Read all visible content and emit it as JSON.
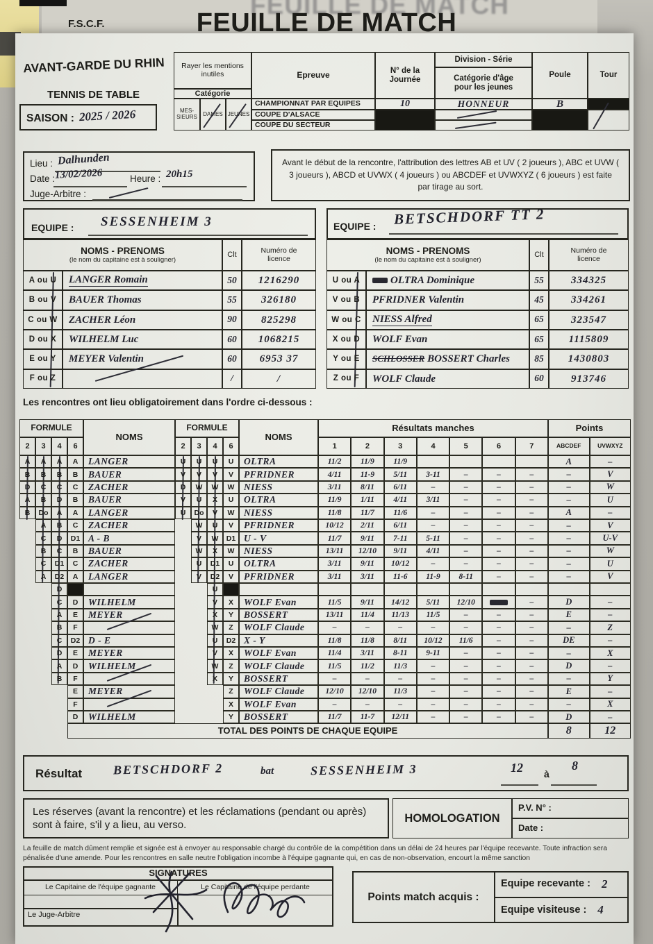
{
  "photo": {
    "ghost_title": "FEUILLE DE MATCH"
  },
  "header": {
    "org": "F.S.C.F.",
    "title": "FEUILLE DE MATCH"
  },
  "club": {
    "name": "AVANT-GARDE DU RHIN",
    "sport": "TENNIS DE TABLE",
    "season_label": "SAISON :",
    "season_value": "2025 / 2026"
  },
  "top_table": {
    "rayer": "Rayer les mentions inutiles",
    "categorie": "Catégorie",
    "cat_options": [
      "MES-SIEURS",
      "DAMES",
      "JEUNES"
    ],
    "epreuve_label": "Epreuve",
    "journee_label": "N° de la Journée",
    "division_label": "Division - Série",
    "division_sub": "Catégorie d'âge pour les jeunes",
    "poule_label": "Poule",
    "tour_label": "Tour",
    "epreuves": [
      "CHAMPIONNAT PAR EQUIPES",
      "COUPE D'ALSACE",
      "COUPE DU SECTEUR"
    ],
    "journee_value": "10",
    "division_value": "HONNEUR",
    "poule_value": "B"
  },
  "info": {
    "lieu_label": "Lieu :",
    "lieu_value": "Dalhunden",
    "date_label": "Date :",
    "date_value": "13/02/2026",
    "heure_label": "Heure :",
    "heure_value": "20h15",
    "juge_label": "Juge-Arbitre :"
  },
  "notice": "Avant le début de la rencontre, l'attribution des lettres AB et UV ( 2 joueurs ), ABC et UVW ( 3 joueurs ), ABCD et UVWX ( 4 joueurs ) ou ABCDEF et UVWXYZ ( 6 joueurs ) est faite par tirage au sort.",
  "teams": {
    "equipe_label": "EQUIPE :",
    "header_name": "NOMS - PRENOMS",
    "header_sub": "(le nom du capitaine est à souligner)",
    "header_clt": "Clt",
    "header_lic": "Numéro de licence",
    "left": {
      "name": "SESSENHEIM 3",
      "rows": [
        {
          "letters": "A ou U",
          "name": "LANGER Romain",
          "clt": "50",
          "lic": "1216290",
          "u": true
        },
        {
          "letters": "B ou V",
          "name": "BAUER Thomas",
          "clt": "55",
          "lic": "326180"
        },
        {
          "letters": "C ou W",
          "name": "ZACHER Léon",
          "clt": "90",
          "lic": "825298"
        },
        {
          "letters": "D ou X",
          "name": "WILHELM Luc",
          "clt": "60",
          "lic": "1068215"
        },
        {
          "letters": "E ou Y",
          "name": "MEYER Valentin",
          "clt": "60",
          "lic": "6953 37"
        },
        {
          "letters": "F ou Z",
          "name": "",
          "clt": "/",
          "lic": "/",
          "slash": true
        }
      ]
    },
    "right": {
      "name": "BETSCHDORF TT 2",
      "rows": [
        {
          "letters": "U ou A",
          "name": "OLTRA Dominique",
          "clt": "55",
          "lic": "334325",
          "scr": true
        },
        {
          "letters": "V ou B",
          "name": "PFRIDNER Valentin",
          "clt": "45",
          "lic": "334261"
        },
        {
          "letters": "W ou C",
          "name": "NIESS Alfred",
          "clt": "65",
          "lic": "323547",
          "u": true
        },
        {
          "letters": "X ou D",
          "name": "WOLF Evan",
          "clt": "65",
          "lic": "1115809"
        },
        {
          "letters": "Y ou E",
          "name": "BOSSERT Charles",
          "clt": "85",
          "lic": "1430803",
          "strike_pre": "SCHLOSSER"
        },
        {
          "letters": "Z ou F",
          "name": "WOLF Claude",
          "clt": "60",
          "lic": "913746"
        }
      ]
    }
  },
  "order_note": "Les rencontres ont lieu obligatoirement dans l'ordre ci-dessous :",
  "grid": {
    "formule_label": "FORMULE",
    "noms_label": "NOMS",
    "resultats_label": "Résultats manches",
    "points_label": "Points",
    "formule_cols": [
      "2",
      "3",
      "4",
      "6"
    ],
    "manche_cols": [
      "1",
      "2",
      "3",
      "4",
      "5",
      "6",
      "7"
    ],
    "points_cols": [
      "ABCDEF",
      "UVWXYZ"
    ],
    "rows": [
      {
        "fl": [
          "A",
          "A",
          "A",
          "A"
        ],
        "nl": "LANGER",
        "fr": [
          "U",
          "U",
          "U",
          "U"
        ],
        "nr": "OLTRA",
        "m": [
          "11/2",
          "11/9",
          "11/9",
          "",
          "",
          "",
          ""
        ],
        "pl": "A",
        "pr": "–"
      },
      {
        "fl": [
          "B",
          "B",
          "B",
          "B"
        ],
        "nl": "BAUER",
        "fr": [
          "V",
          "V",
          "V",
          "V"
        ],
        "nr": "PFRIDNER",
        "m": [
          "4/11",
          "11-9",
          "5/11",
          "3-11",
          "–",
          "–",
          "–"
        ],
        "pl": "–",
        "pr": "V"
      },
      {
        "fl": [
          "D",
          "C",
          "C",
          "C"
        ],
        "nl": "ZACHER",
        "fr": [
          "D",
          "W",
          "W",
          "W"
        ],
        "nr": "NIESS",
        "m": [
          "3/11",
          "8/11",
          "6/11",
          "–",
          "–",
          "–",
          "–"
        ],
        "pl": "–",
        "pr": "W"
      },
      {
        "fl": [
          "A",
          "B",
          "D",
          "B"
        ],
        "nl": "BAUER",
        "fr": [
          "V",
          "U",
          "X",
          "U"
        ],
        "nr": "OLTRA",
        "m": [
          "11/9",
          "1/11",
          "4/11",
          "3/11",
          "–",
          "–",
          "–"
        ],
        "pl": "–",
        "pr": "U"
      },
      {
        "fl": [
          "B",
          "Do",
          "A",
          "A"
        ],
        "nl": "LANGER",
        "fr": [
          "U",
          "Do",
          "V",
          "W"
        ],
        "nr": "NIESS",
        "m": [
          "11/8",
          "11/7",
          "11/6",
          "–",
          "–",
          "–",
          "–"
        ],
        "pl": "A",
        "pr": "–"
      },
      {
        "fl": [
          null,
          "A",
          "B",
          "C"
        ],
        "nl": "ZACHER",
        "fr": [
          null,
          "W",
          "U",
          "V"
        ],
        "nr": "PFRIDNER",
        "m": [
          "10/12",
          "2/11",
          "6/11",
          "–",
          "–",
          "–",
          "–"
        ],
        "pl": "–",
        "pr": "V"
      },
      {
        "fl": [
          null,
          "C",
          "D",
          "D1"
        ],
        "nl": "A - B",
        "fr": [
          null,
          "V",
          "W",
          "D1"
        ],
        "nr": "U - V",
        "m": [
          "11/7",
          "9/11",
          "7-11",
          "5-11",
          "–",
          "–",
          "–"
        ],
        "pl": "–",
        "pr": "U-V"
      },
      {
        "fl": [
          null,
          "B",
          "C",
          "B"
        ],
        "nl": "BAUER",
        "fr": [
          null,
          "W",
          "X",
          "W"
        ],
        "nr": "NIESS",
        "m": [
          "13/11",
          "12/10",
          "9/11",
          "4/11",
          "–",
          "–",
          "–"
        ],
        "pl": "–",
        "pr": "W"
      },
      {
        "fl": [
          null,
          "C",
          "D1",
          "C"
        ],
        "nl": "ZACHER",
        "fr": [
          null,
          "U",
          "D1",
          "U"
        ],
        "nr": "OLTRA",
        "m": [
          "3/11",
          "9/11",
          "10/12",
          "–",
          "–",
          "–",
          "–"
        ],
        "pl": "–",
        "pr": "U"
      },
      {
        "fl": [
          null,
          "A",
          "D2",
          "A"
        ],
        "nl": "LANGER",
        "fr": [
          null,
          "V",
          "D2",
          "V"
        ],
        "nr": "PFRIDNER",
        "m": [
          "3/11",
          "3/11",
          "11-6",
          "11-9",
          "8-11",
          "–",
          "–"
        ],
        "pl": "–",
        "pr": "V"
      },
      {
        "fl": [
          null,
          null,
          "D",
          "#"
        ],
        "nl": "",
        "fr": [
          null,
          null,
          "U",
          "#"
        ],
        "nr": "",
        "m": [
          "",
          "",
          "",
          "",
          "",
          "",
          ""
        ],
        "pl": "",
        "pr": ""
      },
      {
        "fl": [
          null,
          null,
          "C",
          "D"
        ],
        "nl": "WILHELM",
        "fr": [
          null,
          null,
          "V",
          "X"
        ],
        "nr": "WOLF Evan",
        "m": [
          "11/5",
          "9/11",
          "14/12",
          "5/11",
          "12/10",
          "~",
          "–"
        ],
        "pl": "D",
        "pr": "–"
      },
      {
        "fl": [
          null,
          null,
          "A",
          "E"
        ],
        "nl": "MEYER",
        "fr": [
          null,
          null,
          "X",
          "Y"
        ],
        "nr": "BOSSERT",
        "m": [
          "13/11",
          "11/4",
          "11/13",
          "11/5",
          "–",
          "–",
          "–"
        ],
        "pl": "E",
        "pr": "–"
      },
      {
        "fl": [
          null,
          null,
          "B",
          "F"
        ],
        "nl": "/",
        "fr": [
          null,
          null,
          "W",
          "Z"
        ],
        "nr": "WOLF Claude",
        "m": [
          "–",
          "–",
          "–",
          "–",
          "–",
          "–",
          "–"
        ],
        "pl": "–",
        "pr": "Z"
      },
      {
        "fl": [
          null,
          null,
          "C",
          "D2"
        ],
        "nl": "D - E",
        "fr": [
          null,
          null,
          "U",
          "D2"
        ],
        "nr": "X - Y",
        "m": [
          "11/8",
          "11/8",
          "8/11",
          "10/12",
          "11/6",
          "–",
          "–"
        ],
        "pl": "DE",
        "pr": "–"
      },
      {
        "fl": [
          null,
          null,
          "D",
          "E"
        ],
        "nl": "MEYER",
        "fr": [
          null,
          null,
          "V",
          "X"
        ],
        "nr": "WOLF Evan",
        "m": [
          "11/4",
          "3/11",
          "8-11",
          "9-11",
          "–",
          "–",
          "–"
        ],
        "pl": "–",
        "pr": "X"
      },
      {
        "fl": [
          null,
          null,
          "A",
          "D"
        ],
        "nl": "WILHELM",
        "fr": [
          null,
          null,
          "W",
          "Z"
        ],
        "nr": "WOLF Claude",
        "m": [
          "11/5",
          "11/2",
          "11/3",
          "–",
          "–",
          "–",
          "–"
        ],
        "pl": "D",
        "pr": "–"
      },
      {
        "fl": [
          null,
          null,
          "B",
          "F"
        ],
        "nl": "/",
        "fr": [
          null,
          null,
          "X",
          "Y"
        ],
        "nr": "BOSSERT",
        "m": [
          "–",
          "–",
          "–",
          "–",
          "–",
          "–",
          "–"
        ],
        "pl": "–",
        "pr": "Y"
      },
      {
        "fl": [
          null,
          null,
          null,
          "E"
        ],
        "nl": "MEYER",
        "fr": [
          null,
          null,
          null,
          "Z"
        ],
        "nr": "WOLF Claude",
        "m": [
          "12/10",
          "12/10",
          "11/3",
          "–",
          "–",
          "–",
          "–"
        ],
        "pl": "E",
        "pr": "–"
      },
      {
        "fl": [
          null,
          null,
          null,
          "F"
        ],
        "nl": "/",
        "fr": [
          null,
          null,
          null,
          "X"
        ],
        "nr": "WOLF Evan",
        "m": [
          "–",
          "–",
          "–",
          "–",
          "–",
          "–",
          "–"
        ],
        "pl": "–",
        "pr": "X"
      },
      {
        "fl": [
          null,
          null,
          null,
          "D"
        ],
        "nl": "WILHELM",
        "fr": [
          null,
          null,
          null,
          "Y"
        ],
        "nr": "BOSSERT",
        "m": [
          "11/7",
          "11-7",
          "12/11",
          "–",
          "–",
          "–",
          "–"
        ],
        "pl": "D",
        "pr": "–"
      }
    ],
    "total_label": "TOTAL DES POINTS DE CHAQUE EQUIPE",
    "total_left": "8",
    "total_right": "12"
  },
  "resultat": {
    "label": "Résultat",
    "winner": "BETSCHDORF 2",
    "verb": "bat",
    "loser": "SESSENHEIM 3",
    "score_left": "12",
    "a_label": "à",
    "score_right": "8"
  },
  "reserves": "Les réserves (avant la rencontre) et les réclamations (pendant ou après) sont à faire, s'il y a lieu, au verso.",
  "homologation": {
    "title": "HOMOLOGATION",
    "pv_label": "P.V. N° :",
    "date_label": "Date :"
  },
  "fine_print": "La feuille de match dûment remplie et signée est à envoyer au responsable chargé du contrôle de la compétition dans un délai de 24 heures par l'équipe recevante. Toute infraction sera pénalisée d'une amende. Pour les rencontres en salle neutre l'obligation incombe à l'équipe gagnante qui, en cas de non-observation, encourt la même sanction",
  "signatures": {
    "title": "SIGNATURES",
    "winner_label": "Le Capitaine de l'équipe gagnante",
    "loser_label": "Le Capitaine de l'équipe perdante",
    "referee_label": "Le Juge-Arbitre"
  },
  "points_acquis": {
    "label": "Points match acquis :",
    "recevante_label": "Equipe recevante :",
    "recevante_value": "2",
    "visiteuse_label": "Equipe visiteuse :",
    "visiteuse_value": "4"
  },
  "colors": {
    "ink": "#23232e",
    "paper": "#e8e9e4",
    "line": "#26261f"
  }
}
